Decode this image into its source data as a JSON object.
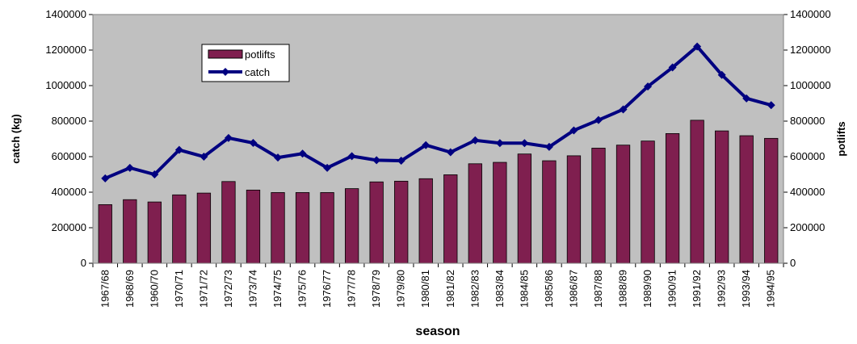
{
  "chart_data": {
    "type": "combo",
    "xlabel": "season",
    "ylabel": "catch (kg)",
    "y2label": "potlifts",
    "categories": [
      "1967/68",
      "1968/69",
      "1960/70",
      "1970/71",
      "1971/72",
      "1972/73",
      "1973/74",
      "1974/75",
      "1975/76",
      "1976/77",
      "1977/78",
      "1978/79",
      "1979/80",
      "1980/81",
      "1981/82",
      "1982/83",
      "1983/84",
      "1984/85",
      "1985/86",
      "1986/87",
      "1987/88",
      "1988/89",
      "1989/90",
      "1990/91",
      "1991/92",
      "1992/93",
      "1993/94",
      "1994/95"
    ],
    "series": [
      {
        "name": "potlifts",
        "type": "bar",
        "axis": "y2",
        "color": "#7f1f4f",
        "values": [
          330000,
          358000,
          345000,
          385000,
          395000,
          460000,
          412000,
          398000,
          398000,
          398000,
          420000,
          458000,
          462000,
          476000,
          498000,
          560000,
          568000,
          615000,
          577000,
          605000,
          648000,
          665000,
          688000,
          730000,
          805000,
          745000,
          718000,
          703000
        ]
      },
      {
        "name": "catch",
        "type": "line",
        "color": "#000080",
        "values": [
          478000,
          537000,
          500000,
          638000,
          600000,
          705000,
          677000,
          595000,
          617000,
          537000,
          603000,
          580000,
          577000,
          665000,
          625000,
          692000,
          676000,
          676000,
          655000,
          748000,
          806000,
          866000,
          995000,
          1102000,
          1220000,
          1060000,
          928000,
          890000
        ]
      }
    ],
    "ylim": [
      0,
      1400000
    ],
    "yticks": [
      0,
      200000,
      400000,
      600000,
      800000,
      1000000,
      1200000,
      1400000
    ],
    "y2lim": [
      0,
      1400000
    ],
    "y2ticks": [
      0,
      200000,
      400000,
      600000,
      800000,
      1000000,
      1200000,
      1400000
    ],
    "background": "#c0c0c0"
  }
}
